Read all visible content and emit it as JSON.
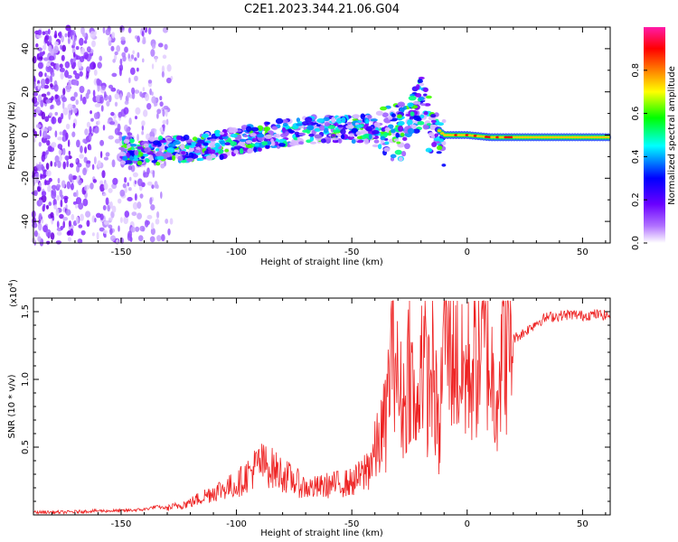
{
  "title": "C2E1.2023.344.21.06.G04",
  "chart_data": [
    {
      "type": "heatmap",
      "title": "C2E1.2023.344.21.06.G04",
      "xlabel": "Height of straight line (km)",
      "ylabel": "Frequency (Hz)",
      "xlim": [
        -188,
        62
      ],
      "ylim": [
        -50,
        50
      ],
      "x_ticks": [
        -150,
        -100,
        -50,
        0,
        50
      ],
      "y_ticks": [
        -40,
        -20,
        0,
        20,
        40
      ],
      "colorbar": {
        "label": "Normalized spectral amplitude",
        "range": [
          0.0,
          1.0
        ],
        "ticks": [
          "0.0",
          "0.2",
          "0.4",
          "0.6",
          "0.8"
        ],
        "colormap": [
          "#ffffff",
          "#7a00ff",
          "#0000ff",
          "#00ffff",
          "#00ff00",
          "#ffff00",
          "#ff8000",
          "#ff0000",
          "#ff00a0"
        ]
      },
      "frequency_trace": {
        "x": [
          -150,
          -140,
          -130,
          -120,
          -110,
          -100,
          -90,
          -80,
          -70,
          -60,
          -50,
          -40,
          -30,
          -25,
          -20,
          -15,
          -10,
          0,
          10,
          20,
          30,
          40,
          50,
          60
        ],
        "y": [
          -7,
          -8,
          -7,
          -6,
          -5,
          -3,
          -1,
          1,
          2,
          3,
          3,
          3,
          5,
          8,
          18,
          5,
          0,
          0,
          -1,
          -1,
          -1,
          -1,
          -1,
          -1
        ]
      }
    },
    {
      "type": "line",
      "xlabel": "Height of straight line (km)",
      "ylabel": "SNR (10 * v/v)",
      "y_scale_label": "(x10",
      "y_scale_exp": "4",
      "xlim": [
        -188,
        62
      ],
      "ylim": [
        0,
        1.6
      ],
      "x_ticks": [
        -150,
        -100,
        -50,
        0,
        50
      ],
      "y_ticks": [
        "0.5",
        "1.0",
        "1.5"
      ],
      "series": [
        {
          "color": "#ee2222",
          "x": [
            -188,
            -175,
            -160,
            -150,
            -140,
            -135,
            -130,
            -125,
            -120,
            -115,
            -110,
            -105,
            -100,
            -95,
            -90,
            -85,
            -80,
            -75,
            -70,
            -65,
            -60,
            -55,
            -50,
            -45,
            -40,
            -35,
            -32,
            -30,
            -27,
            -25,
            -22,
            -20,
            -17,
            -15,
            -12,
            -10,
            -8,
            -5,
            -3,
            0,
            3,
            5,
            8,
            10,
            12,
            15,
            18,
            20,
            25,
            30,
            35,
            40,
            45,
            50,
            55,
            62
          ],
          "y": [
            0.02,
            0.02,
            0.03,
            0.03,
            0.04,
            0.06,
            0.05,
            0.07,
            0.09,
            0.13,
            0.17,
            0.2,
            0.22,
            0.3,
            0.38,
            0.35,
            0.3,
            0.25,
            0.2,
            0.2,
            0.22,
            0.23,
            0.24,
            0.3,
            0.45,
            0.7,
            1.5,
            0.9,
            0.8,
            1.2,
            0.6,
            1.3,
            0.9,
            1.1,
            0.5,
            1.55,
            1.3,
            1.2,
            1.0,
            1.05,
            1.1,
            1.2,
            1.3,
            1.1,
            0.9,
            1.2,
            1.28,
            1.3,
            1.35,
            1.42,
            1.46,
            1.47,
            1.48,
            1.47,
            1.48,
            1.47
          ]
        }
      ]
    }
  ]
}
